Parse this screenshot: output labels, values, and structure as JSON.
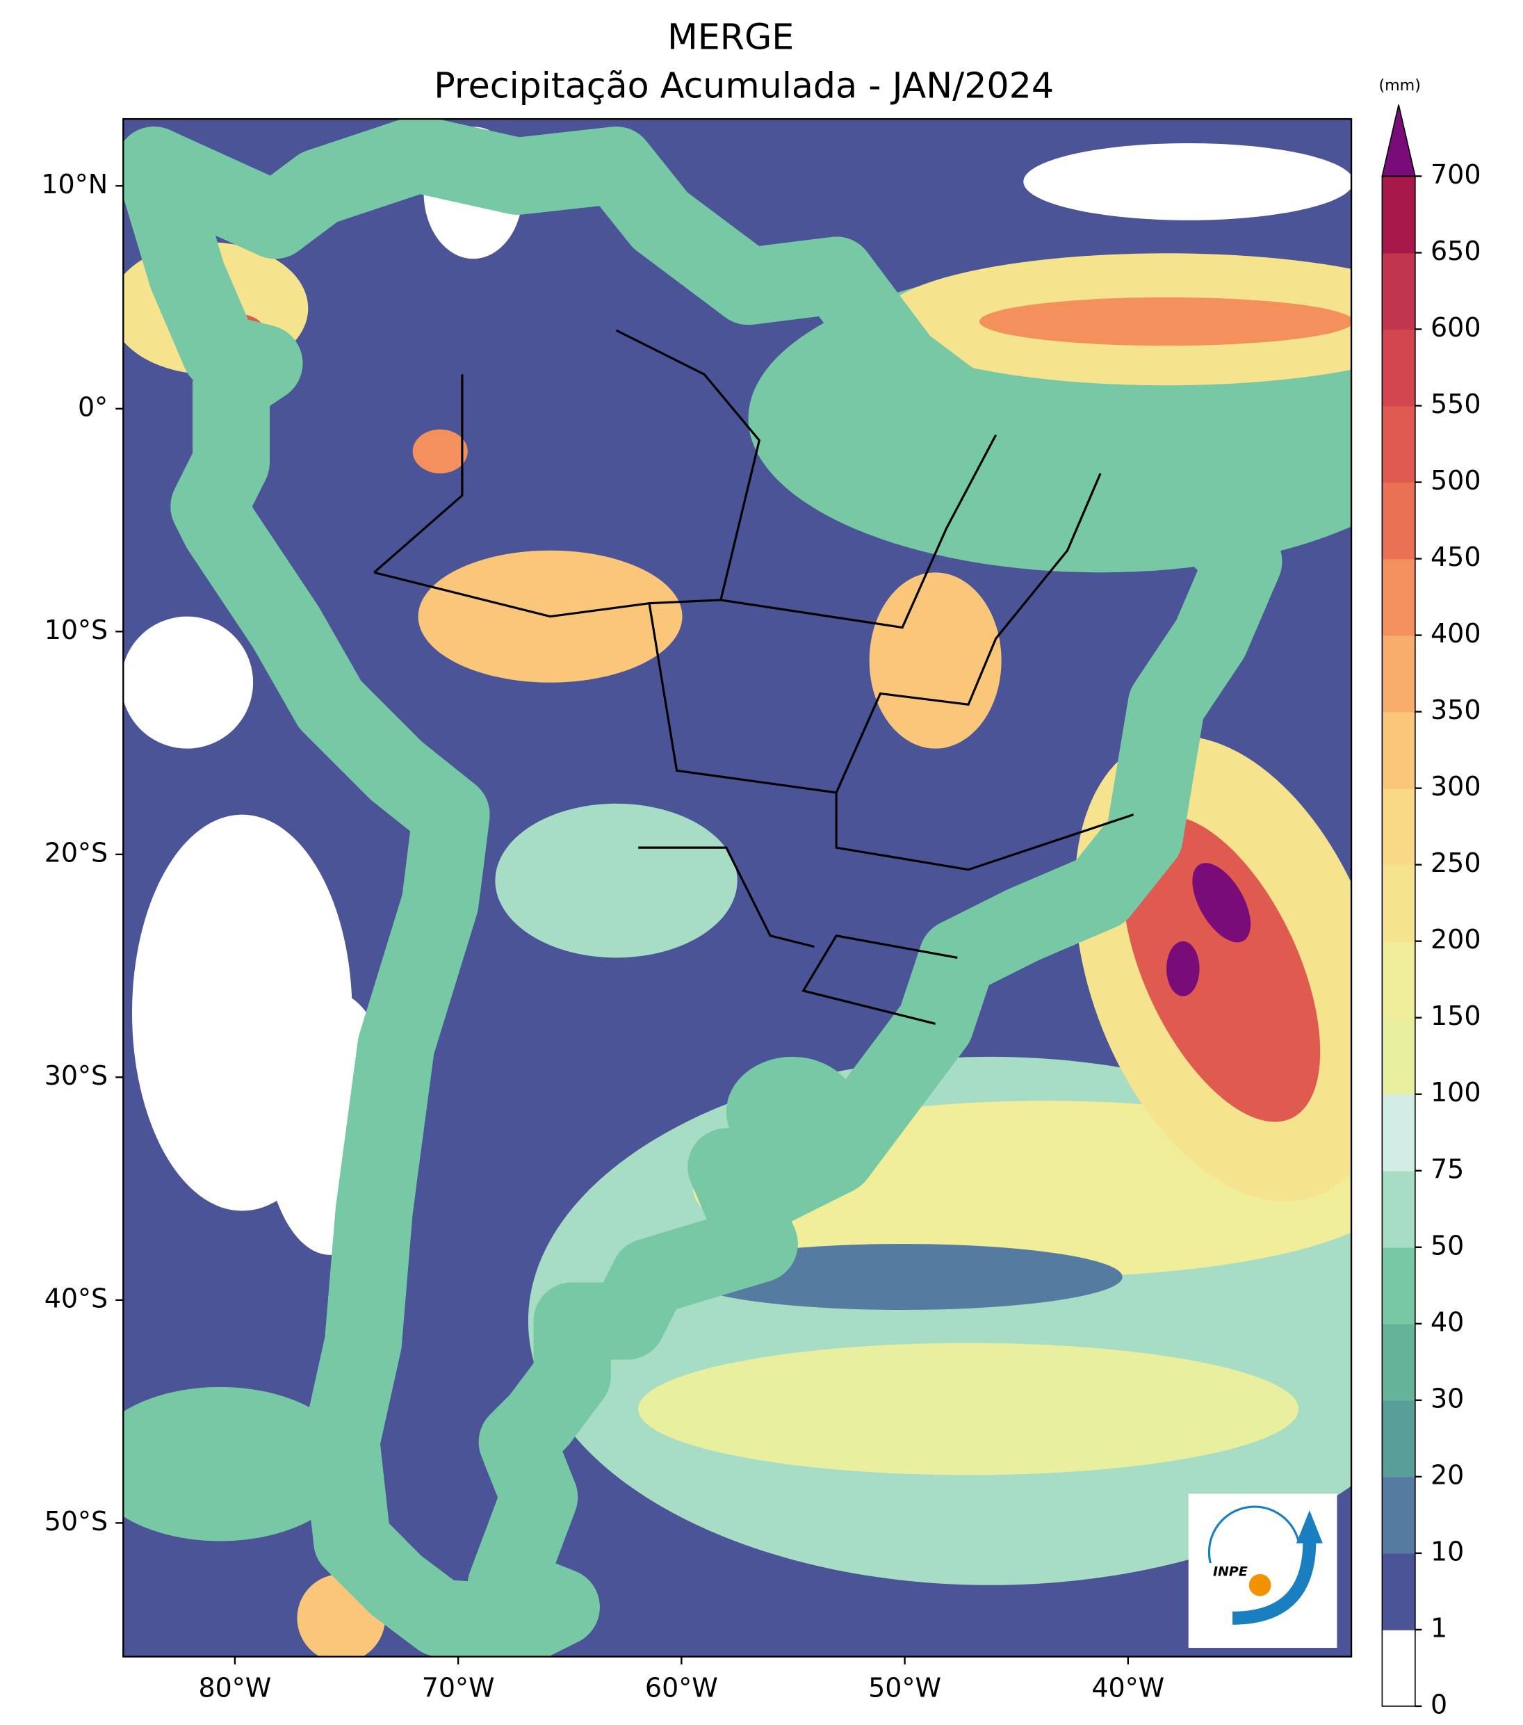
{
  "title": "MERGE",
  "subtitle": "Precipitação Acumulada - JAN/2024",
  "map": {
    "xlim": [
      -85,
      -30
    ],
    "ylim": [
      -56,
      13
    ],
    "xticks": [
      {
        "value": -80,
        "label": "80°W"
      },
      {
        "value": -70,
        "label": "70°W"
      },
      {
        "value": -60,
        "label": "60°W"
      },
      {
        "value": -50,
        "label": "50°W"
      },
      {
        "value": -40,
        "label": "40°W"
      }
    ],
    "yticks": [
      {
        "value": 10,
        "label": "10°N"
      },
      {
        "value": 0,
        "label": "0°"
      },
      {
        "value": -10,
        "label": "10°S"
      },
      {
        "value": -20,
        "label": "20°S"
      },
      {
        "value": -30,
        "label": "30°S"
      },
      {
        "value": -40,
        "label": "40°S"
      },
      {
        "value": -50,
        "label": "50°S"
      }
    ]
  },
  "colorbar": {
    "unit": "(mm)",
    "levels": [
      0,
      1,
      10,
      20,
      30,
      40,
      50,
      75,
      100,
      150,
      200,
      250,
      300,
      350,
      400,
      450,
      500,
      550,
      600,
      650,
      700
    ],
    "colors": [
      "#ffffff",
      "#4a5496",
      "#557ba0",
      "#5a9e9a",
      "#64b49a",
      "#77c8a4",
      "#a7dcc5",
      "#d2ece6",
      "#e8f0a0",
      "#f1ee9a",
      "#f6e38e",
      "#f9d886",
      "#fac67a",
      "#f7ad6b",
      "#f3905c",
      "#ea7153",
      "#df5a4f",
      "#d3454f",
      "#c1364e",
      "#a7194a"
    ],
    "over_color": "#7a0c7a"
  },
  "logo": "INPE"
}
